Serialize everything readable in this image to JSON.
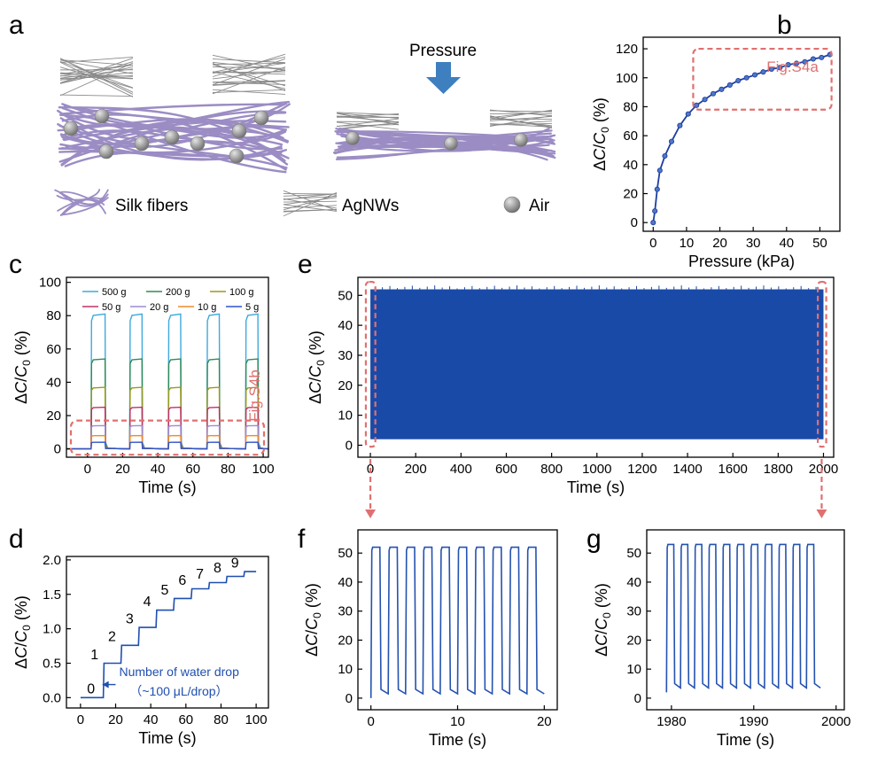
{
  "panel_letters": [
    "a",
    "b",
    "c",
    "d",
    "e",
    "f",
    "g"
  ],
  "schematic": {
    "pressure_label": "Pressure",
    "legend": {
      "silk": "Silk fibers",
      "agnws": "AgNWs",
      "air": "Air"
    },
    "colors": {
      "silk": "#9b8cc4",
      "agnw": "#8a8a8a",
      "air": "#9a9a9a",
      "arrow": "#3e7fbf"
    }
  },
  "axis_common": {
    "ylabel_delta": "Δ",
    "ylabel_c": "C",
    "ylabel_slash": "/",
    "ylabel_c0": "C",
    "ylabel_sub": "0",
    "ylabel_unit": " (%)"
  },
  "chart_data": [
    {
      "panel": "b",
      "type": "line",
      "xlabel": "Pressure (kPa)",
      "ylabel": "ΔC/C0 (%)",
      "xlim": [
        -3,
        56
      ],
      "ylim": [
        -6,
        128
      ],
      "xticks": [
        0,
        10,
        20,
        30,
        40,
        50
      ],
      "yticks": [
        0,
        20,
        40,
        60,
        80,
        100,
        120
      ],
      "annotation": "Fig.S4a",
      "series": [
        {
          "color": "#1f3fa0",
          "x": [
            0,
            0.5,
            1.2,
            2,
            3.5,
            5.5,
            8,
            10.5,
            13,
            15.5,
            18,
            20.5,
            23,
            25.5,
            28,
            30.5,
            33,
            35.5,
            38,
            40.5,
            43,
            45.5,
            48,
            50.5,
            53
          ],
          "y": [
            0,
            8,
            23,
            36,
            46,
            56,
            67,
            75,
            81,
            85,
            89,
            92,
            95,
            98,
            100,
            102,
            104,
            106,
            107,
            109,
            110,
            111,
            113,
            114,
            116
          ]
        }
      ]
    },
    {
      "panel": "c",
      "type": "line",
      "xlabel": "Time (s)",
      "ylabel": "ΔC/C0 (%)",
      "xlim": [
        -12,
        103
      ],
      "ylim": [
        -5,
        103
      ],
      "xticks": [
        0,
        20,
        40,
        60,
        80,
        100
      ],
      "yticks": [
        0,
        20,
        40,
        60,
        80,
        100
      ],
      "annotation": "Fig.S4b",
      "pulse_on": [
        [
          2,
          10
        ],
        [
          24,
          31
        ],
        [
          46,
          53
        ],
        [
          68,
          75
        ],
        [
          90,
          97
        ]
      ],
      "series": [
        {
          "name": "500 g",
          "color": "#3fa9dc",
          "amplitude": 81
        },
        {
          "name": "200 g",
          "color": "#2e8b57",
          "amplitude": 54
        },
        {
          "name": "100 g",
          "color": "#9a9a1a",
          "amplitude": 37
        },
        {
          "name": "50 g",
          "color": "#c0306a",
          "amplitude": 25
        },
        {
          "name": "20 g",
          "color": "#9b8cd6",
          "amplitude": 14
        },
        {
          "name": "10 g",
          "color": "#ee8c2a",
          "amplitude": 8
        },
        {
          "name": "5 g",
          "color": "#2f55c8",
          "amplitude": 4
        }
      ]
    },
    {
      "panel": "d",
      "type": "line",
      "xlabel": "Time (s)",
      "ylabel": "ΔC/C0 (%)",
      "xlim": [
        -8,
        107
      ],
      "ylim": [
        -0.15,
        2.05
      ],
      "xticks": [
        0,
        20,
        40,
        60,
        80,
        100
      ],
      "yticks": [
        0.0,
        0.5,
        1.0,
        1.5,
        2.0
      ],
      "tick_labels_y": [
        "0.0",
        "0.5",
        "1.0",
        "1.5",
        "2.0"
      ],
      "step_labels": [
        "0",
        "1",
        "2",
        "3",
        "4",
        "5",
        "6",
        "7",
        "8",
        "9"
      ],
      "annotation": "Number of water drop",
      "annotation2": "（~100 μL/drop）",
      "series": [
        {
          "color": "#1f4fb0",
          "step_times": [
            13,
            23,
            33,
            43,
            53,
            63,
            73,
            83,
            93
          ],
          "levels": [
            0.0,
            0.5,
            0.76,
            1.02,
            1.27,
            1.44,
            1.58,
            1.67,
            1.76,
            1.83
          ],
          "x_end": 100
        }
      ]
    },
    {
      "panel": "e",
      "type": "area",
      "xlabel": "Time (s)",
      "ylabel": "ΔC/C0 (%)",
      "xlim": [
        -55,
        2045
      ],
      "ylim": [
        -4,
        56
      ],
      "xticks": [
        0,
        200,
        400,
        600,
        800,
        1000,
        1200,
        1400,
        1600,
        1800,
        2000
      ],
      "yticks": [
        0,
        10,
        20,
        30,
        40,
        50
      ],
      "series": [
        {
          "color": "#1a4aa8",
          "x_range": [
            0,
            2000
          ],
          "y_low": 2,
          "y_high": 52
        }
      ]
    },
    {
      "panel": "f",
      "type": "line",
      "xlabel": "Time (s)",
      "ylabel": "ΔC/C0 (%)",
      "xlim": [
        -1.5,
        21.5
      ],
      "ylim": [
        -4,
        58
      ],
      "xticks": [
        0,
        10,
        20
      ],
      "yticks": [
        0,
        10,
        20,
        30,
        40,
        50
      ],
      "series": [
        {
          "color": "#2452b0",
          "period": 2,
          "count": 10,
          "start": 0,
          "low": 0,
          "high": 52
        }
      ]
    },
    {
      "panel": "g",
      "type": "line",
      "xlabel": "Time (s)",
      "ylabel": "ΔC/C0 (%)",
      "xlim": [
        1977,
        2001
      ],
      "ylim": [
        -4,
        58
      ],
      "xticks": [
        1980,
        1990,
        2000
      ],
      "yticks": [
        0,
        10,
        20,
        30,
        40,
        50
      ],
      "series": [
        {
          "color": "#2452b0",
          "period": 1.7,
          "count": 11,
          "start": 1979.4,
          "low": 2,
          "high": 53
        }
      ]
    }
  ]
}
